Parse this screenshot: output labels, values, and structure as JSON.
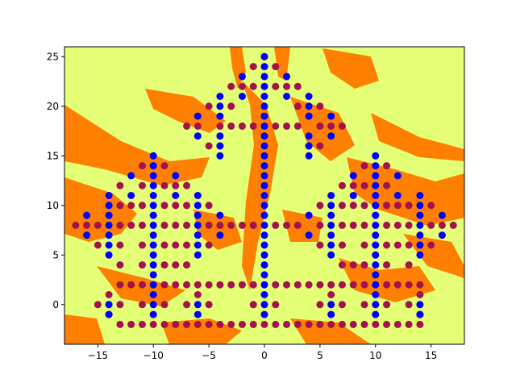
{
  "chart_data": {
    "type": "scatter",
    "title": "",
    "xlabel": "",
    "ylabel": "",
    "xlim": [
      -18,
      18
    ],
    "ylim": [
      -4,
      26
    ],
    "grid": false,
    "legend": "none",
    "xticks": [
      -15,
      -10,
      -5,
      0,
      5,
      10,
      15
    ],
    "yticks": [
      0,
      5,
      10,
      15,
      20,
      25
    ],
    "xtick_labels": [
      "−15",
      "−10",
      "−5",
      "0",
      "5",
      "10",
      "15"
    ],
    "ytick_labels": [
      "0",
      "5",
      "10",
      "15",
      "20",
      "25"
    ],
    "background": {
      "description_colors": [
        "#e4fe76",
        "#ff7f00"
      ],
      "light_color": "#e4fe76",
      "dark_color": "#ff7f00"
    },
    "series": [
      {
        "color": "#a2124f",
        "points": [
          [
            -17,
            8
          ],
          [
            -16,
            8
          ],
          [
            -15,
            8
          ],
          [
            -13,
            8
          ],
          [
            -12,
            8
          ],
          [
            -11,
            8
          ],
          [
            -9,
            8
          ],
          [
            -8,
            8
          ],
          [
            -7,
            8
          ],
          [
            -5,
            8
          ],
          [
            -4,
            8
          ],
          [
            -3,
            8
          ],
          [
            -2,
            8
          ],
          [
            -1,
            8
          ],
          [
            1,
            8
          ],
          [
            2,
            8
          ],
          [
            3,
            8
          ],
          [
            5,
            8
          ],
          [
            7,
            8
          ],
          [
            8,
            8
          ],
          [
            9,
            8
          ],
          [
            11,
            8
          ],
          [
            12,
            8
          ],
          [
            13,
            8
          ],
          [
            15,
            8
          ],
          [
            16,
            8
          ],
          [
            17,
            8
          ],
          [
            -13,
            2
          ],
          [
            -12,
            2
          ],
          [
            -11,
            2
          ],
          [
            -9,
            2
          ],
          [
            -8,
            2
          ],
          [
            -7,
            2
          ],
          [
            -6,
            2
          ],
          [
            -5,
            2
          ],
          [
            -4,
            2
          ],
          [
            -3,
            2
          ],
          [
            -2,
            2
          ],
          [
            -1,
            2
          ],
          [
            1,
            2
          ],
          [
            2,
            2
          ],
          [
            3,
            2
          ],
          [
            4,
            2
          ],
          [
            5,
            2
          ],
          [
            6,
            2
          ],
          [
            7,
            2
          ],
          [
            8,
            2
          ],
          [
            9,
            2
          ],
          [
            11,
            2
          ],
          [
            12,
            2
          ],
          [
            13,
            2
          ],
          [
            14,
            2
          ],
          [
            -13,
            -2
          ],
          [
            -12,
            -2
          ],
          [
            -11,
            -2
          ],
          [
            -10,
            -2
          ],
          [
            -9,
            -2
          ],
          [
            -8,
            -2
          ],
          [
            -7,
            -2
          ],
          [
            -6,
            -2
          ],
          [
            -5,
            -2
          ],
          [
            -4,
            -2
          ],
          [
            -3,
            -2
          ],
          [
            -2,
            -2
          ],
          [
            -1,
            -2
          ],
          [
            0,
            -2
          ],
          [
            1,
            -2
          ],
          [
            2,
            -2
          ],
          [
            3,
            -2
          ],
          [
            4,
            -2
          ],
          [
            5,
            -2
          ],
          [
            6,
            -2
          ],
          [
            7,
            -2
          ],
          [
            8,
            -2
          ],
          [
            9,
            -2
          ],
          [
            10,
            -2
          ],
          [
            11,
            -2
          ],
          [
            12,
            -2
          ],
          [
            13,
            -2
          ],
          [
            14,
            -2
          ],
          [
            -7,
            18
          ],
          [
            -6,
            18
          ],
          [
            -4,
            18
          ],
          [
            -3,
            18
          ],
          [
            -2,
            18
          ],
          [
            -1,
            18
          ],
          [
            1,
            18
          ],
          [
            2,
            18
          ],
          [
            3,
            18
          ],
          [
            5,
            18
          ],
          [
            6,
            18
          ],
          [
            7,
            18
          ],
          [
            -3,
            22
          ],
          [
            -2,
            22
          ],
          [
            -1,
            22
          ],
          [
            1,
            22
          ],
          [
            2,
            22
          ],
          [
            3,
            22
          ],
          [
            -1,
            24
          ],
          [
            1,
            24
          ],
          [
            -5,
            20
          ],
          [
            -3,
            20
          ],
          [
            3,
            20
          ],
          [
            5,
            20
          ],
          [
            -5,
            16
          ],
          [
            -4,
            16
          ],
          [
            4,
            16
          ],
          [
            5,
            16
          ],
          [
            -9,
            14
          ],
          [
            -11,
            14
          ],
          [
            9,
            14
          ],
          [
            11,
            14
          ],
          [
            -13,
            12
          ],
          [
            -11,
            12
          ],
          [
            -9,
            12
          ],
          [
            -8,
            12
          ],
          [
            -7,
            12
          ],
          [
            7,
            12
          ],
          [
            8,
            12
          ],
          [
            9,
            12
          ],
          [
            11,
            12
          ],
          [
            -13,
            10
          ],
          [
            -12,
            10
          ],
          [
            -11,
            10
          ],
          [
            -9,
            10
          ],
          [
            -8,
            10
          ],
          [
            -7,
            10
          ],
          [
            -5,
            10
          ],
          [
            5,
            10
          ],
          [
            7,
            10
          ],
          [
            8,
            10
          ],
          [
            9,
            10
          ],
          [
            11,
            10
          ],
          [
            12,
            10
          ],
          [
            13,
            10
          ],
          [
            15,
            10
          ],
          [
            -15,
            6
          ],
          [
            -13,
            6
          ],
          [
            -11,
            6
          ],
          [
            -9,
            6
          ],
          [
            -8,
            6
          ],
          [
            -7,
            6
          ],
          [
            -5,
            6
          ],
          [
            5,
            6
          ],
          [
            7,
            6
          ],
          [
            9,
            6
          ],
          [
            11,
            6
          ],
          [
            12,
            6
          ],
          [
            13,
            6
          ],
          [
            15,
            6
          ],
          [
            -13,
            4
          ],
          [
            -11,
            4
          ],
          [
            -9,
            4
          ],
          [
            -8,
            4
          ],
          [
            -7,
            4
          ],
          [
            7,
            4
          ],
          [
            8,
            4
          ],
          [
            9,
            4
          ],
          [
            11,
            4
          ],
          [
            13,
            4
          ],
          [
            -15,
            0
          ],
          [
            -13,
            0
          ],
          [
            -11,
            0
          ],
          [
            -9,
            0
          ],
          [
            -7,
            0
          ],
          [
            -5,
            0
          ],
          [
            -1,
            0
          ],
          [
            1,
            0
          ],
          [
            5,
            0
          ],
          [
            7,
            0
          ],
          [
            9,
            0
          ],
          [
            11,
            0
          ],
          [
            13,
            0
          ],
          [
            -14,
            1
          ],
          [
            -14,
            -1
          ],
          [
            14,
            1
          ],
          [
            14,
            -1
          ],
          [
            -6,
            1
          ],
          [
            6,
            1
          ]
        ]
      },
      {
        "color": "#0000ff",
        "points": [
          [
            0,
            25
          ],
          [
            0,
            24
          ],
          [
            0,
            23
          ],
          [
            0,
            22
          ],
          [
            0,
            21
          ],
          [
            0,
            20
          ],
          [
            0,
            19
          ],
          [
            0,
            18
          ],
          [
            0,
            17
          ],
          [
            0,
            16
          ],
          [
            0,
            15
          ],
          [
            0,
            14
          ],
          [
            0,
            13
          ],
          [
            0,
            12
          ],
          [
            0,
            11
          ],
          [
            0,
            10
          ],
          [
            0,
            9
          ],
          [
            0,
            8
          ],
          [
            0,
            7
          ],
          [
            0,
            6
          ],
          [
            0,
            5
          ],
          [
            0,
            4
          ],
          [
            0,
            3
          ],
          [
            0,
            2
          ],
          [
            0,
            1
          ],
          [
            0,
            0
          ],
          [
            0,
            -1
          ],
          [
            -2,
            23
          ],
          [
            -2,
            21
          ],
          [
            2,
            23
          ],
          [
            2,
            21
          ],
          [
            -4,
            21
          ],
          [
            -4,
            20
          ],
          [
            -4,
            19
          ],
          [
            4,
            21
          ],
          [
            4,
            20
          ],
          [
            4,
            19
          ],
          [
            -6,
            19
          ],
          [
            -6,
            17
          ],
          [
            6,
            19
          ],
          [
            6,
            17
          ],
          [
            -4,
            17
          ],
          [
            -4,
            16
          ],
          [
            -4,
            15
          ],
          [
            4,
            17
          ],
          [
            4,
            16
          ],
          [
            4,
            15
          ],
          [
            -10,
            15
          ],
          [
            -10,
            14
          ],
          [
            -10,
            13
          ],
          [
            -10,
            12
          ],
          [
            -10,
            11
          ],
          [
            -10,
            10
          ],
          [
            -10,
            9
          ],
          [
            -10,
            8
          ],
          [
            -10,
            7
          ],
          [
            -10,
            6
          ],
          [
            -10,
            5
          ],
          [
            -10,
            4
          ],
          [
            -10,
            3
          ],
          [
            -10,
            2
          ],
          [
            -10,
            1
          ],
          [
            -10,
            0
          ],
          [
            -10,
            -1
          ],
          [
            10,
            15
          ],
          [
            10,
            14
          ],
          [
            10,
            13
          ],
          [
            10,
            12
          ],
          [
            10,
            11
          ],
          [
            10,
            10
          ],
          [
            10,
            9
          ],
          [
            10,
            8
          ],
          [
            10,
            7
          ],
          [
            10,
            6
          ],
          [
            10,
            5
          ],
          [
            10,
            4
          ],
          [
            10,
            3
          ],
          [
            10,
            2
          ],
          [
            10,
            1
          ],
          [
            10,
            0
          ],
          [
            10,
            -1
          ],
          [
            -12,
            13
          ],
          [
            -12,
            11
          ],
          [
            -8,
            13
          ],
          [
            -8,
            11
          ],
          [
            8,
            13
          ],
          [
            8,
            11
          ],
          [
            12,
            13
          ],
          [
            12,
            11
          ],
          [
            -14,
            11
          ],
          [
            -14,
            10
          ],
          [
            -14,
            9
          ],
          [
            -14,
            8
          ],
          [
            -14,
            7
          ],
          [
            -14,
            6
          ],
          [
            -14,
            5
          ],
          [
            14,
            11
          ],
          [
            14,
            10
          ],
          [
            14,
            9
          ],
          [
            14,
            8
          ],
          [
            14,
            7
          ],
          [
            14,
            6
          ],
          [
            14,
            5
          ],
          [
            -16,
            9
          ],
          [
            -16,
            7
          ],
          [
            16,
            9
          ],
          [
            16,
            7
          ],
          [
            -6,
            11
          ],
          [
            -6,
            10
          ],
          [
            -6,
            9
          ],
          [
            -6,
            8
          ],
          [
            -6,
            7
          ],
          [
            -6,
            6
          ],
          [
            -6,
            5
          ],
          [
            6,
            11
          ],
          [
            6,
            10
          ],
          [
            6,
            9
          ],
          [
            6,
            8
          ],
          [
            6,
            7
          ],
          [
            6,
            6
          ],
          [
            6,
            5
          ],
          [
            -4,
            9
          ],
          [
            -4,
            7
          ],
          [
            4,
            9
          ],
          [
            4,
            7
          ],
          [
            -6,
            0
          ],
          [
            -6,
            -1
          ],
          [
            6,
            0
          ],
          [
            6,
            -1
          ],
          [
            -14,
            0
          ],
          [
            -14,
            -1
          ],
          [
            14,
            0
          ],
          [
            14,
            -1
          ]
        ]
      }
    ]
  }
}
